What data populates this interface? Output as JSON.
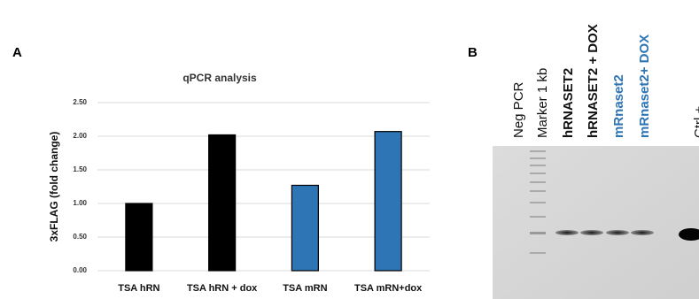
{
  "panel_a_label": "A",
  "chart_data": {
    "type": "bar",
    "title": "qPCR analysis",
    "y_label": "3xFLAG (fold change)",
    "categories": [
      "TSA hRN",
      "TSA hRN + dox",
      "TSA mRN",
      "TSA mRN+dox"
    ],
    "values": [
      1.0,
      2.02,
      1.27,
      2.07
    ],
    "colors": [
      "#000000",
      "#000000",
      "#2e75b6",
      "#2e75b6"
    ],
    "ylim": [
      0,
      2.5
    ],
    "yticks": [
      {
        "value": 0,
        "label": "0.00"
      },
      {
        "value": 0.5,
        "label": "0.50"
      },
      {
        "value": 1,
        "label": "1.00"
      },
      {
        "value": 1.5,
        "label": "1.50"
      },
      {
        "value": 2,
        "label": "2.00"
      },
      {
        "value": 2.5,
        "label": "2.50"
      }
    ],
    "grid": true
  },
  "panel_b": {
    "label": "B",
    "lanes": [
      "Neg PCR",
      "Marker 1 kb",
      "hRNASET2",
      "hRNASET2 + DOX",
      "mRnaset2",
      "mRnaset2+ DOX",
      "Ctrl +"
    ]
  }
}
